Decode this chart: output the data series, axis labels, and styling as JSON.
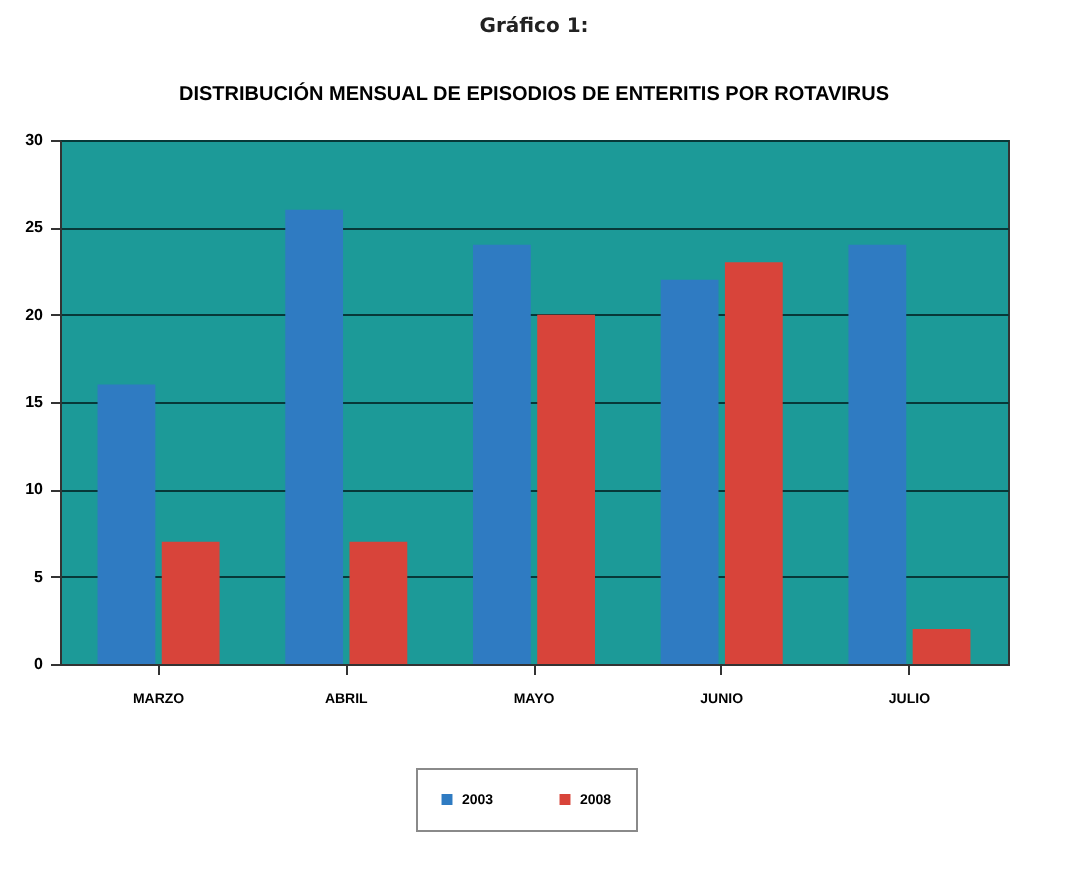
{
  "chart_data": {
    "type": "bar",
    "title": "Gráfico 1:",
    "subtitle": "DISTRIBUCIÓN MENSUAL DE EPISODIOS DE ENTERITIS POR ROTAVIRUS",
    "categories": [
      "MARZO",
      "ABRIL",
      "MAYO",
      "JUNIO",
      "JULIO"
    ],
    "series": [
      {
        "name": "2003",
        "color": "#2f7bc2",
        "values": [
          16,
          26,
          24,
          22,
          24
        ]
      },
      {
        "name": "2008",
        "color": "#d8443a",
        "values": [
          7,
          7,
          20,
          23,
          2
        ]
      }
    ],
    "ylim": [
      0,
      30
    ],
    "yticks": [
      0,
      5,
      10,
      15,
      20,
      25,
      30
    ],
    "grid": "y",
    "legend": "bottom"
  }
}
